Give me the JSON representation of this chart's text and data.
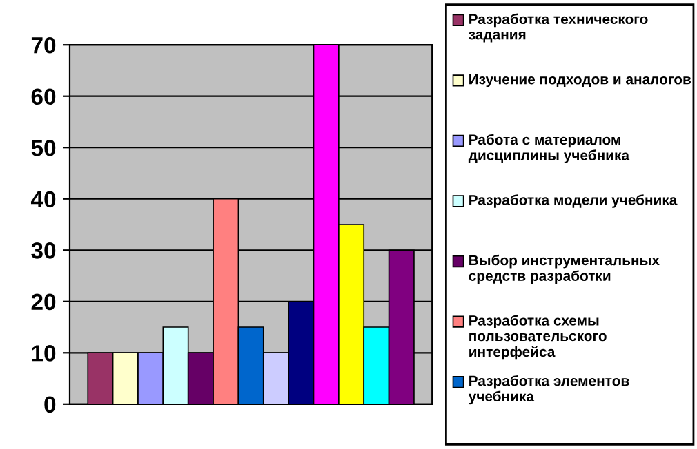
{
  "chart_data": {
    "type": "bar",
    "categories": [
      null
    ],
    "series": [
      {
        "name": "Разработка технического задания",
        "color": "#993366",
        "values": [
          10
        ]
      },
      {
        "name": "Изучение подходов и аналогов",
        "color": "#ffffcc",
        "values": [
          10
        ]
      },
      {
        "name": "Работа с материалом дисциплины учебника",
        "color": "#9999ff",
        "values": [
          10
        ]
      },
      {
        "name": "Разработка модели учебника",
        "color": "#ccffff",
        "values": [
          15
        ]
      },
      {
        "name": "Выбор инструментальных средств разработки",
        "color": "#660066",
        "values": [
          10
        ]
      },
      {
        "name": "Разработка схемы пользовательского интерфейса",
        "color": "#ff8080",
        "values": [
          40
        ]
      },
      {
        "name": "Разработка элементов учебника",
        "color": "#0066cc",
        "values": [
          15
        ]
      },
      {
        "color": "#ccccff",
        "values": [
          10
        ]
      },
      {
        "color": "#000080",
        "values": [
          20
        ]
      },
      {
        "color": "#ff00ff",
        "values": [
          70
        ]
      },
      {
        "color": "#ffff00",
        "values": [
          35
        ]
      },
      {
        "color": "#00ffff",
        "values": [
          15
        ]
      },
      {
        "color": "#800080",
        "values": [
          30
        ]
      }
    ],
    "ylim": [
      0,
      70
    ],
    "yticks": [
      0,
      10,
      20,
      30,
      40,
      50,
      60,
      70
    ],
    "grid": "y",
    "legend": "right"
  }
}
